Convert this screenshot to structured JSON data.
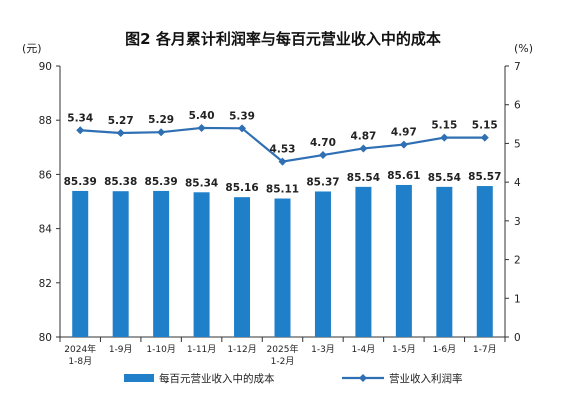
{
  "chart_data": {
    "type": "bar+line",
    "title": "图2 各月累计利润率与每百元营业收入中的成本",
    "left_unit": "(元)",
    "right_unit": "(%)",
    "categories": [
      [
        "2024年",
        "1-8月"
      ],
      [
        "1-9月"
      ],
      [
        "1-10月"
      ],
      [
        "1-11月"
      ],
      [
        "1-12月"
      ],
      [
        "2025年",
        "1-2月"
      ],
      [
        "1-3月"
      ],
      [
        "1-4月"
      ],
      [
        "1-5月"
      ],
      [
        "1-6月"
      ],
      [
        "1-7月"
      ]
    ],
    "y_left": {
      "min": 80,
      "max": 90,
      "ticks": [
        80,
        82,
        84,
        86,
        88,
        90
      ]
    },
    "y_right": {
      "min": 0,
      "max": 7,
      "ticks": [
        0,
        1,
        2,
        3,
        4,
        5,
        6,
        7
      ]
    },
    "series": [
      {
        "name": "每百元营业收入中的成本",
        "kind": "bar",
        "axis": "left",
        "color": "#1f7fc8",
        "values": [
          85.39,
          85.38,
          85.39,
          85.34,
          85.16,
          85.11,
          85.37,
          85.54,
          85.61,
          85.54,
          85.57
        ],
        "labels": [
          "85.39",
          "85.38",
          "85.39",
          "85.34",
          "85.16",
          "85.11",
          "85.37",
          "85.54",
          "85.61",
          "85.54",
          "85.57"
        ]
      },
      {
        "name": "营业收入利润率",
        "kind": "line",
        "axis": "right",
        "color": "#2f6fb3",
        "values": [
          5.34,
          5.27,
          5.29,
          5.4,
          5.39,
          4.53,
          4.7,
          4.87,
          4.97,
          5.15,
          5.15
        ],
        "labels": [
          "5.34",
          "5.27",
          "5.29",
          "5.40",
          "5.39",
          "4.53",
          "4.70",
          "4.87",
          "4.97",
          "5.15",
          "5.15"
        ]
      }
    ],
    "grid": false,
    "legend_position": "bottom"
  }
}
